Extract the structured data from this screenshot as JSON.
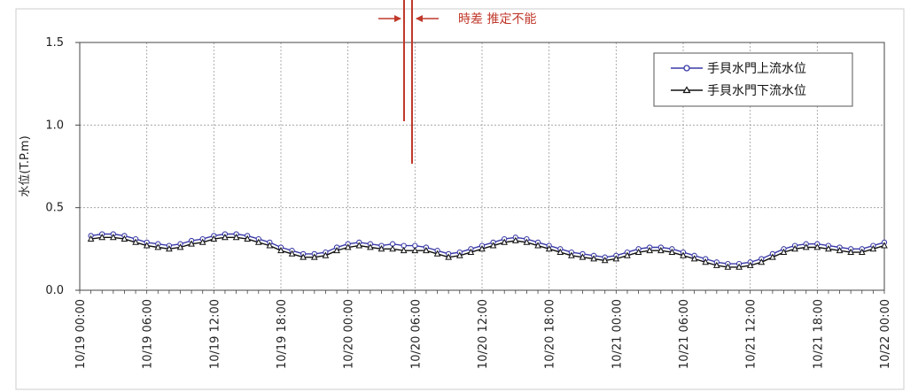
{
  "chart_data": {
    "type": "line",
    "title": "",
    "xlabel": "",
    "ylabel": "水位(T.P.m)",
    "ylim": [
      0.0,
      1.5
    ],
    "yticks": [
      "0.0",
      "0.5",
      "1.0",
      "1.5"
    ],
    "xlim": [
      "10/19 00:00",
      "10/22 00:00"
    ],
    "xtick_labels": [
      "10/19 00:00",
      "10/19 06:00",
      "10/19 12:00",
      "10/19 18:00",
      "10/20 00:00",
      "10/20 06:00",
      "10/20 12:00",
      "10/20 18:00",
      "10/21 00:00",
      "10/21 06:00",
      "10/21 12:00",
      "10/21 18:00",
      "10/22 00:00"
    ],
    "grid": true,
    "legend_position": "top-right",
    "x_step_hours": 1,
    "x_start": "10/19 01:00",
    "series": [
      {
        "name": "手貝水門上流水位",
        "color": "#3a3aa8",
        "marker": "circle",
        "values": [
          0.33,
          0.34,
          0.34,
          0.33,
          0.31,
          0.29,
          0.28,
          0.27,
          0.28,
          0.3,
          0.31,
          0.33,
          0.34,
          0.34,
          0.33,
          0.31,
          0.29,
          0.26,
          0.24,
          0.22,
          0.22,
          0.23,
          0.26,
          0.28,
          0.29,
          0.28,
          0.27,
          0.28,
          0.27,
          0.27,
          0.26,
          0.24,
          0.22,
          0.23,
          0.25,
          0.27,
          0.29,
          0.31,
          0.32,
          0.31,
          0.29,
          0.27,
          0.25,
          0.23,
          0.22,
          0.21,
          0.2,
          0.21,
          0.23,
          0.25,
          0.26,
          0.26,
          0.25,
          0.23,
          0.21,
          0.19,
          0.17,
          0.16,
          0.16,
          0.17,
          0.19,
          0.22,
          0.25,
          0.27,
          0.28,
          0.28,
          0.27,
          0.26,
          0.25,
          0.25,
          0.27,
          0.29
        ]
      },
      {
        "name": "手貝水門下流水位",
        "color": "#111111",
        "marker": "triangle",
        "values": [
          0.31,
          0.32,
          0.32,
          0.31,
          0.29,
          0.27,
          0.26,
          0.25,
          0.26,
          0.28,
          0.29,
          0.31,
          0.32,
          0.32,
          0.31,
          0.29,
          0.27,
          0.24,
          0.22,
          0.2,
          0.2,
          0.21,
          0.24,
          0.26,
          0.27,
          0.26,
          0.25,
          0.25,
          0.24,
          0.24,
          0.24,
          0.22,
          0.2,
          0.21,
          0.23,
          0.25,
          0.27,
          0.29,
          0.3,
          0.29,
          0.27,
          0.25,
          0.23,
          0.21,
          0.2,
          0.19,
          0.18,
          0.19,
          0.21,
          0.23,
          0.24,
          0.24,
          0.23,
          0.21,
          0.19,
          0.17,
          0.15,
          0.14,
          0.14,
          0.15,
          0.17,
          0.2,
          0.23,
          0.25,
          0.26,
          0.26,
          0.25,
          0.24,
          0.23,
          0.23,
          0.25,
          0.27
        ]
      }
    ],
    "annotations": [
      {
        "text": "時差 推定不能",
        "color": "#c0392b",
        "marker_x": "10/20 06:00"
      }
    ]
  }
}
